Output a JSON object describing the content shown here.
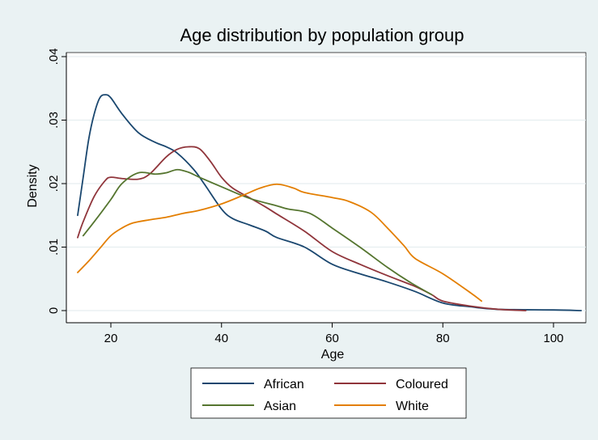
{
  "chart_data": {
    "type": "line",
    "title": "Age distribution by population group",
    "xlabel": "Age",
    "ylabel": "Density",
    "xlim": [
      13,
      106
    ],
    "ylim": [
      0,
      0.041
    ],
    "x_ticks": [
      20,
      40,
      60,
      80,
      100
    ],
    "x_tick_labels": [
      "20",
      "40",
      "60",
      "80",
      "100"
    ],
    "y_ticks": [
      0,
      0.01,
      0.02,
      0.03,
      0.04
    ],
    "y_tick_labels": [
      "0",
      ".01",
      ".02",
      ".03",
      ".04"
    ],
    "grid": "horizontal",
    "legend_position": "bottom",
    "series": [
      {
        "name": "African",
        "color": "#1a476f",
        "points": [
          [
            14,
            0.015
          ],
          [
            15,
            0.021
          ],
          [
            16,
            0.027
          ],
          [
            17,
            0.031
          ],
          [
            18,
            0.0335
          ],
          [
            19,
            0.034
          ],
          [
            20,
            0.0335
          ],
          [
            22,
            0.031
          ],
          [
            25,
            0.028
          ],
          [
            28,
            0.0265
          ],
          [
            30,
            0.0258
          ],
          [
            32,
            0.0248
          ],
          [
            35,
            0.0222
          ],
          [
            37,
            0.0198
          ],
          [
            40,
            0.016
          ],
          [
            42,
            0.0145
          ],
          [
            45,
            0.0135
          ],
          [
            48,
            0.0125
          ],
          [
            50,
            0.0115
          ],
          [
            55,
            0.01
          ],
          [
            60,
            0.0073
          ],
          [
            65,
            0.0058
          ],
          [
            70,
            0.0045
          ],
          [
            75,
            0.003
          ],
          [
            80,
            0.0012
          ],
          [
            85,
            0.0006
          ],
          [
            90,
            0.0002
          ],
          [
            100,
            0.0001
          ],
          [
            105,
            0.0
          ]
        ]
      },
      {
        "name": "Coloured",
        "color": "#90353b",
        "points": [
          [
            14,
            0.0115
          ],
          [
            15,
            0.014
          ],
          [
            17,
            0.018
          ],
          [
            19,
            0.0205
          ],
          [
            20,
            0.021
          ],
          [
            22,
            0.0208
          ],
          [
            25,
            0.0207
          ],
          [
            27,
            0.0215
          ],
          [
            30,
            0.0242
          ],
          [
            32,
            0.0254
          ],
          [
            34,
            0.0258
          ],
          [
            36,
            0.0255
          ],
          [
            38,
            0.0235
          ],
          [
            40,
            0.021
          ],
          [
            42,
            0.0193
          ],
          [
            45,
            0.0178
          ],
          [
            48,
            0.0163
          ],
          [
            50,
            0.0152
          ],
          [
            55,
            0.0125
          ],
          [
            60,
            0.0093
          ],
          [
            65,
            0.0073
          ],
          [
            70,
            0.0055
          ],
          [
            75,
            0.0038
          ],
          [
            78,
            0.0025
          ],
          [
            80,
            0.0015
          ],
          [
            85,
            0.0007
          ],
          [
            90,
            0.0002
          ],
          [
            95,
            0.0
          ]
        ]
      },
      {
        "name": "Asian",
        "color": "#55752f",
        "points": [
          [
            15,
            0.0118
          ],
          [
            17,
            0.014
          ],
          [
            20,
            0.0175
          ],
          [
            22,
            0.02
          ],
          [
            25,
            0.0217
          ],
          [
            28,
            0.0215
          ],
          [
            30,
            0.0217
          ],
          [
            32,
            0.0222
          ],
          [
            34,
            0.0218
          ],
          [
            36,
            0.021
          ],
          [
            40,
            0.0195
          ],
          [
            45,
            0.0177
          ],
          [
            50,
            0.0165
          ],
          [
            52,
            0.016
          ],
          [
            56,
            0.0153
          ],
          [
            60,
            0.013
          ],
          [
            65,
            0.01
          ],
          [
            70,
            0.0068
          ],
          [
            74,
            0.0045
          ],
          [
            78,
            0.0025
          ]
        ]
      },
      {
        "name": "White",
        "color": "#e37e00",
        "points": [
          [
            14,
            0.006
          ],
          [
            16,
            0.0078
          ],
          [
            18,
            0.0098
          ],
          [
            20,
            0.0118
          ],
          [
            22,
            0.013
          ],
          [
            24,
            0.0138
          ],
          [
            27,
            0.0143
          ],
          [
            30,
            0.0147
          ],
          [
            33,
            0.0153
          ],
          [
            36,
            0.0158
          ],
          [
            40,
            0.0168
          ],
          [
            44,
            0.0182
          ],
          [
            47,
            0.0193
          ],
          [
            50,
            0.0199
          ],
          [
            53,
            0.0193
          ],
          [
            55,
            0.0186
          ],
          [
            60,
            0.0178
          ],
          [
            63,
            0.0172
          ],
          [
            67,
            0.0155
          ],
          [
            70,
            0.013
          ],
          [
            73,
            0.0102
          ],
          [
            75,
            0.0082
          ],
          [
            80,
            0.0058
          ],
          [
            85,
            0.0028
          ],
          [
            87,
            0.0015
          ]
        ]
      }
    ]
  }
}
